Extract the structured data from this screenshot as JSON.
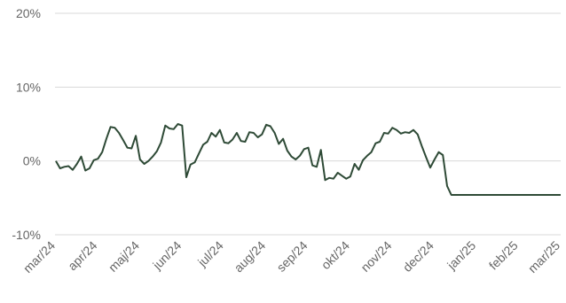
{
  "chart_data": {
    "type": "line",
    "title": "",
    "xlabel": "",
    "ylabel": "",
    "ylim": [
      -10,
      20
    ],
    "y_ticks": [
      -10,
      0,
      10,
      20
    ],
    "y_tick_labels": [
      "-10%",
      "0%",
      "10%",
      "20%"
    ],
    "x_tick_labels": [
      "mar/24",
      "apr/24",
      "maj/24",
      "jun/24",
      "jul/24",
      "aug/24",
      "sep/24",
      "okt/24",
      "nov/24",
      "dec/24",
      "jan/25",
      "feb/25",
      "mar/25"
    ],
    "grid": "horizontal",
    "line_color": "#2e4a36",
    "grid_color": "#d9d9d9",
    "series": [
      {
        "x": [
          0,
          0.1,
          0.2,
          0.3,
          0.4,
          0.5,
          0.6,
          0.7,
          0.8,
          0.9,
          1.0,
          1.1,
          1.2,
          1.3,
          1.4,
          1.5,
          1.6,
          1.7,
          1.8,
          1.9,
          2.0,
          2.1,
          2.2,
          2.3,
          2.4,
          2.5,
          2.6,
          2.7,
          2.8,
          2.9,
          3.0,
          3.1,
          3.2,
          3.3,
          3.4,
          3.5,
          3.6,
          3.7,
          3.8,
          3.9,
          4.0,
          4.1,
          4.2,
          4.3,
          4.4,
          4.5,
          4.6,
          4.7,
          4.8,
          4.9,
          5.0,
          5.1,
          5.2,
          5.3,
          5.4,
          5.5,
          5.6,
          5.7,
          5.8,
          5.9,
          6.0,
          6.1,
          6.2,
          6.3,
          6.4,
          6.5,
          6.6,
          6.7,
          6.8,
          6.9,
          7.0,
          7.1,
          7.2,
          7.3,
          7.4,
          7.5,
          7.6,
          7.7,
          7.8,
          7.9,
          8.0,
          8.1,
          8.2,
          8.3,
          8.4,
          8.5,
          8.6,
          8.7,
          8.8,
          8.9,
          9.0,
          9.1,
          9.2,
          9.3,
          9.4,
          9.5,
          9.6,
          9.7,
          9.8,
          9.9,
          10.0,
          10.1,
          10.2,
          10.3,
          10.4,
          10.5,
          10.6,
          10.7,
          10.8,
          10.9,
          11.0,
          11.1,
          11.2,
          11.3,
          11.4,
          11.5,
          11.6,
          11.7,
          11.8,
          11.9,
          12.0
        ],
        "y": [
          0.0,
          -1.0,
          -0.8,
          -0.7,
          -1.2,
          -0.4,
          0.6,
          -1.3,
          -1.0,
          0.1,
          0.3,
          1.2,
          3.0,
          4.6,
          4.5,
          3.8,
          2.8,
          1.8,
          1.7,
          3.4,
          0.2,
          -0.4,
          0.0,
          0.6,
          1.3,
          2.5,
          4.8,
          4.4,
          4.3,
          5.0,
          4.8,
          -2.2,
          -0.5,
          -0.2,
          1.0,
          2.2,
          2.6,
          3.8,
          3.3,
          4.2,
          2.5,
          2.4,
          2.9,
          3.8,
          2.7,
          2.6,
          3.9,
          3.8,
          3.2,
          3.6,
          4.9,
          4.7,
          3.8,
          2.3,
          3.0,
          1.4,
          0.6,
          0.2,
          0.7,
          1.6,
          1.8,
          -0.6,
          -0.8,
          1.5,
          -2.6,
          -2.3,
          -2.4,
          -1.6,
          -2.0,
          -2.4,
          -2.1,
          -0.4,
          -1.2,
          0.1,
          0.7,
          1.2,
          2.4,
          2.6,
          3.8,
          3.7,
          4.5,
          4.2,
          3.7,
          3.9,
          3.8,
          4.2,
          3.6,
          2.0,
          0.5,
          -0.9,
          0.2,
          1.2,
          0.8,
          -3.4,
          -4.6,
          -4.6,
          -4.6,
          -4.6,
          -4.6,
          -4.6,
          -4.6,
          -4.6,
          -4.6,
          -4.6,
          -4.6,
          -4.6,
          -4.6,
          -4.6,
          -4.6,
          -4.6,
          -4.6,
          -4.6,
          -4.6,
          -4.6,
          -4.6,
          -4.6,
          -4.6,
          -4.6,
          -4.6,
          -4.6,
          -4.6
        ]
      }
    ]
  }
}
